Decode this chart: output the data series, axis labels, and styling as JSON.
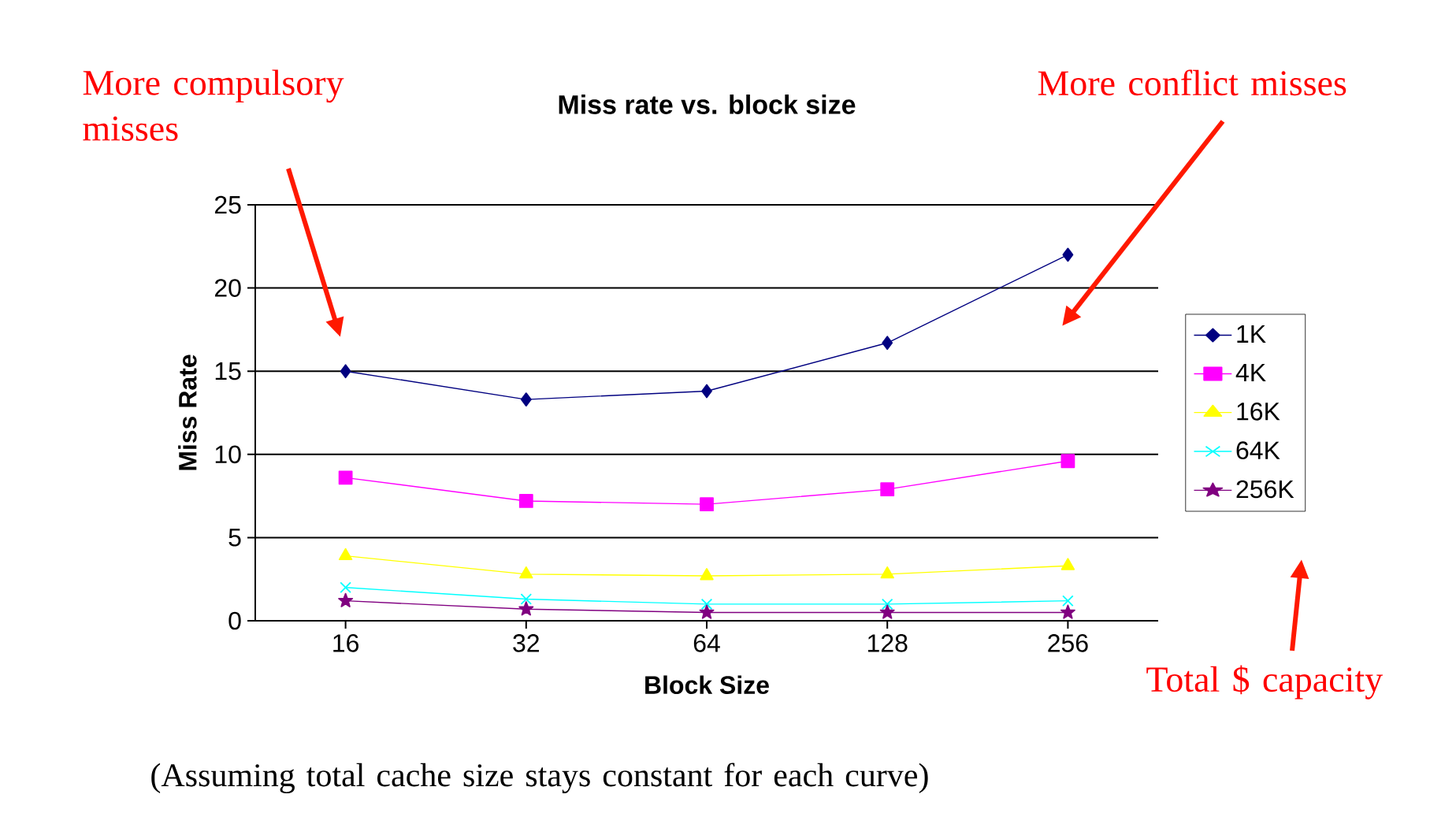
{
  "chart_data": {
    "type": "line",
    "title": "Miss rate vs. block size",
    "xlabel": "Block Size",
    "ylabel": "Miss Rate",
    "categories": [
      "16",
      "32",
      "64",
      "128",
      "256"
    ],
    "series": [
      {
        "name": "1K",
        "color": "#000080",
        "marker": "diamond",
        "values": [
          15.0,
          13.3,
          13.8,
          16.7,
          22.0
        ]
      },
      {
        "name": "4K",
        "color": "#ff00ff",
        "marker": "square",
        "values": [
          8.6,
          7.2,
          7.0,
          7.9,
          9.6
        ]
      },
      {
        "name": "16K",
        "color": "#ffff00",
        "marker": "triangle",
        "values": [
          3.9,
          2.8,
          2.7,
          2.8,
          3.3
        ]
      },
      {
        "name": "64K",
        "color": "#00ffff",
        "marker": "cross",
        "values": [
          2.0,
          1.3,
          1.0,
          1.0,
          1.2
        ]
      },
      {
        "name": "256K",
        "color": "#800080",
        "marker": "star",
        "values": [
          1.2,
          0.7,
          0.5,
          0.5,
          0.5
        ]
      }
    ],
    "ylim": [
      0,
      25
    ],
    "yticks": [
      0,
      5,
      10,
      15,
      20,
      25
    ],
    "grid": "y",
    "legend": "right",
    "line_style": "solid",
    "annotations": [
      "More compulsory misses",
      "More conflict misses",
      "Total $ capacity",
      "(Assuming total cache size stays constant for each curve)"
    ]
  }
}
